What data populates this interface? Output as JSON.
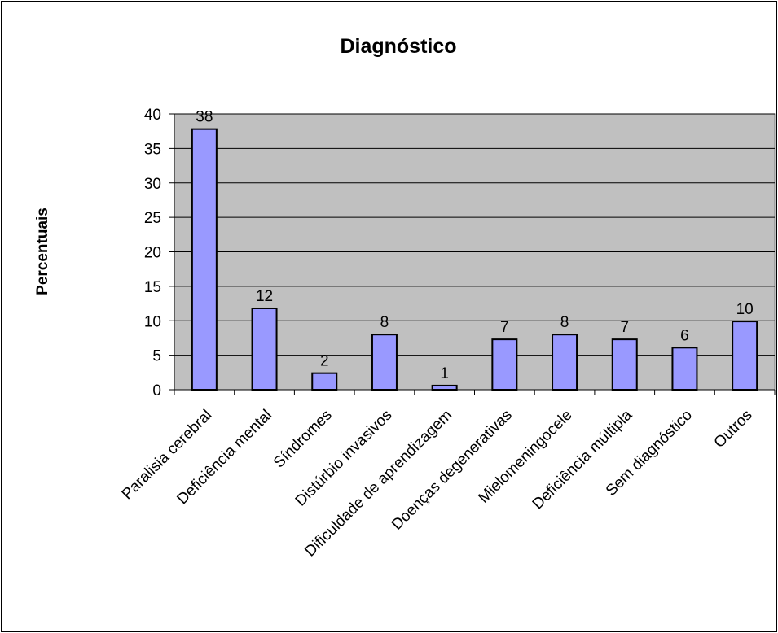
{
  "chart_data": {
    "type": "bar",
    "title": "Diagnóstico",
    "xlabel": "",
    "ylabel": "Percentuais",
    "ylim": [
      0,
      40
    ],
    "yticks": [
      0,
      5,
      10,
      15,
      20,
      25,
      30,
      35,
      40
    ],
    "grid": "horizontal",
    "legend": "none",
    "categories": [
      "Paralisia cerebral",
      "Deficiência mental",
      "Síndromes",
      "Distúrbio invasivos",
      "Dificuldade de aprendizagem",
      "Doenças degenerativas",
      "Mielomeningocele",
      "Deficiência múltipla",
      "Sem diagnóstico",
      "Outros"
    ],
    "values": [
      37.8,
      11.8,
      2.4,
      8.0,
      0.6,
      7.3,
      8.0,
      7.3,
      6.1,
      9.9
    ],
    "data_labels": [
      "38",
      "12",
      "2",
      "8",
      "1",
      "7",
      "8",
      "7",
      "6",
      "10"
    ],
    "colors": {
      "bar_fill": "#9999ff",
      "bar_stroke": "#000000",
      "plot_background": "#c0c0c0",
      "gridline": "#000000"
    }
  }
}
